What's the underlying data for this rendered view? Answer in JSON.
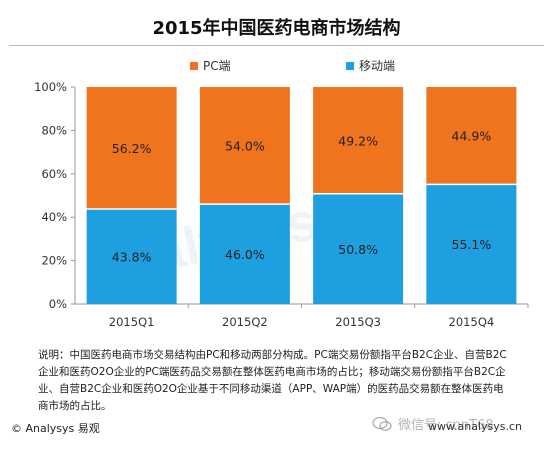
{
  "chart_data": {
    "type": "bar",
    "stacked": true,
    "title": "2015年中国医药电商市场结构",
    "categories": [
      "2015Q1",
      "2015Q2",
      "2015Q3",
      "2015Q4"
    ],
    "series": [
      {
        "name": "移动端",
        "values": [
          43.8,
          46.0,
          50.8,
          55.1
        ],
        "color": "#1e9fe0"
      },
      {
        "name": "PC端",
        "values": [
          56.2,
          54.0,
          49.2,
          44.9
        ],
        "color": "#f0731e"
      }
    ],
    "ylim": [
      0,
      100
    ],
    "yticks": [
      "0%",
      "20%",
      "40%",
      "60%",
      "80%",
      "100%"
    ],
    "grid": false,
    "legend_position": "top"
  },
  "note": "说明：中国医药电商市场交易结构由PC和移动两部分构成。PC端交易份额指平台B2C企业、自营B2C企业和医药O2O企业的PC端医药品交易额在整体医药电商市场的占比；移动端交易份额指平台B2C企业、自营B2C企业和医药O2O企业基于不同移动渠道（APP、WAP端）的医药品交易额在整体医药电商市场的占比。",
  "copyright": "© Analysys 易观",
  "site": "www.analysys.cn",
  "wechat_overlay": "微信号: cnnT68"
}
